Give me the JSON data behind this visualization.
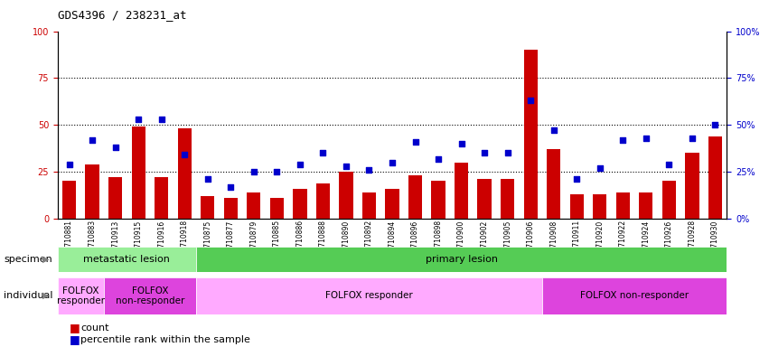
{
  "title": "GDS4396 / 238231_at",
  "samples": [
    "GSM710881",
    "GSM710883",
    "GSM710913",
    "GSM710915",
    "GSM710916",
    "GSM710918",
    "GSM710875",
    "GSM710877",
    "GSM710879",
    "GSM710885",
    "GSM710886",
    "GSM710888",
    "GSM710890",
    "GSM710892",
    "GSM710894",
    "GSM710896",
    "GSM710898",
    "GSM710900",
    "GSM710902",
    "GSM710905",
    "GSM710906",
    "GSM710908",
    "GSM710911",
    "GSM710920",
    "GSM710922",
    "GSM710924",
    "GSM710926",
    "GSM710928",
    "GSM710930"
  ],
  "counts": [
    20,
    29,
    22,
    49,
    22,
    48,
    12,
    11,
    14,
    11,
    16,
    19,
    25,
    14,
    16,
    23,
    20,
    30,
    21,
    21,
    90,
    37,
    13,
    13,
    14,
    14,
    20,
    35,
    44
  ],
  "percentiles": [
    29,
    42,
    38,
    53,
    53,
    34,
    21,
    17,
    25,
    25,
    29,
    35,
    28,
    26,
    30,
    41,
    32,
    40,
    35,
    35,
    63,
    47,
    21,
    27,
    42,
    43,
    29,
    43,
    50
  ],
  "bar_color": "#cc0000",
  "dot_color": "#0000cc",
  "ylim_left": [
    0,
    100
  ],
  "ylim_right": [
    0,
    100
  ],
  "yticks_left": [
    0,
    25,
    50,
    75,
    100
  ],
  "yticks_right": [
    0,
    25,
    50,
    75,
    100
  ],
  "gridlines": [
    25,
    50,
    75
  ],
  "specimen_groups": [
    {
      "label": "metastatic lesion",
      "start": 0,
      "end": 6,
      "color": "#99ee99"
    },
    {
      "label": "primary lesion",
      "start": 6,
      "end": 29,
      "color": "#55cc55"
    }
  ],
  "individual_groups": [
    {
      "label": "FOLFOX\nresponder",
      "start": 0,
      "end": 2,
      "color": "#ffaaff"
    },
    {
      "label": "FOLFOX\nnon-responder",
      "start": 2,
      "end": 6,
      "color": "#dd44dd"
    },
    {
      "label": "FOLFOX responder",
      "start": 6,
      "end": 21,
      "color": "#ffaaff"
    },
    {
      "label": "FOLFOX non-responder",
      "start": 21,
      "end": 29,
      "color": "#dd44dd"
    }
  ],
  "legend_count_label": "count",
  "legend_pct_label": "percentile rank within the sample",
  "specimen_label": "specimen",
  "individual_label": "individual"
}
